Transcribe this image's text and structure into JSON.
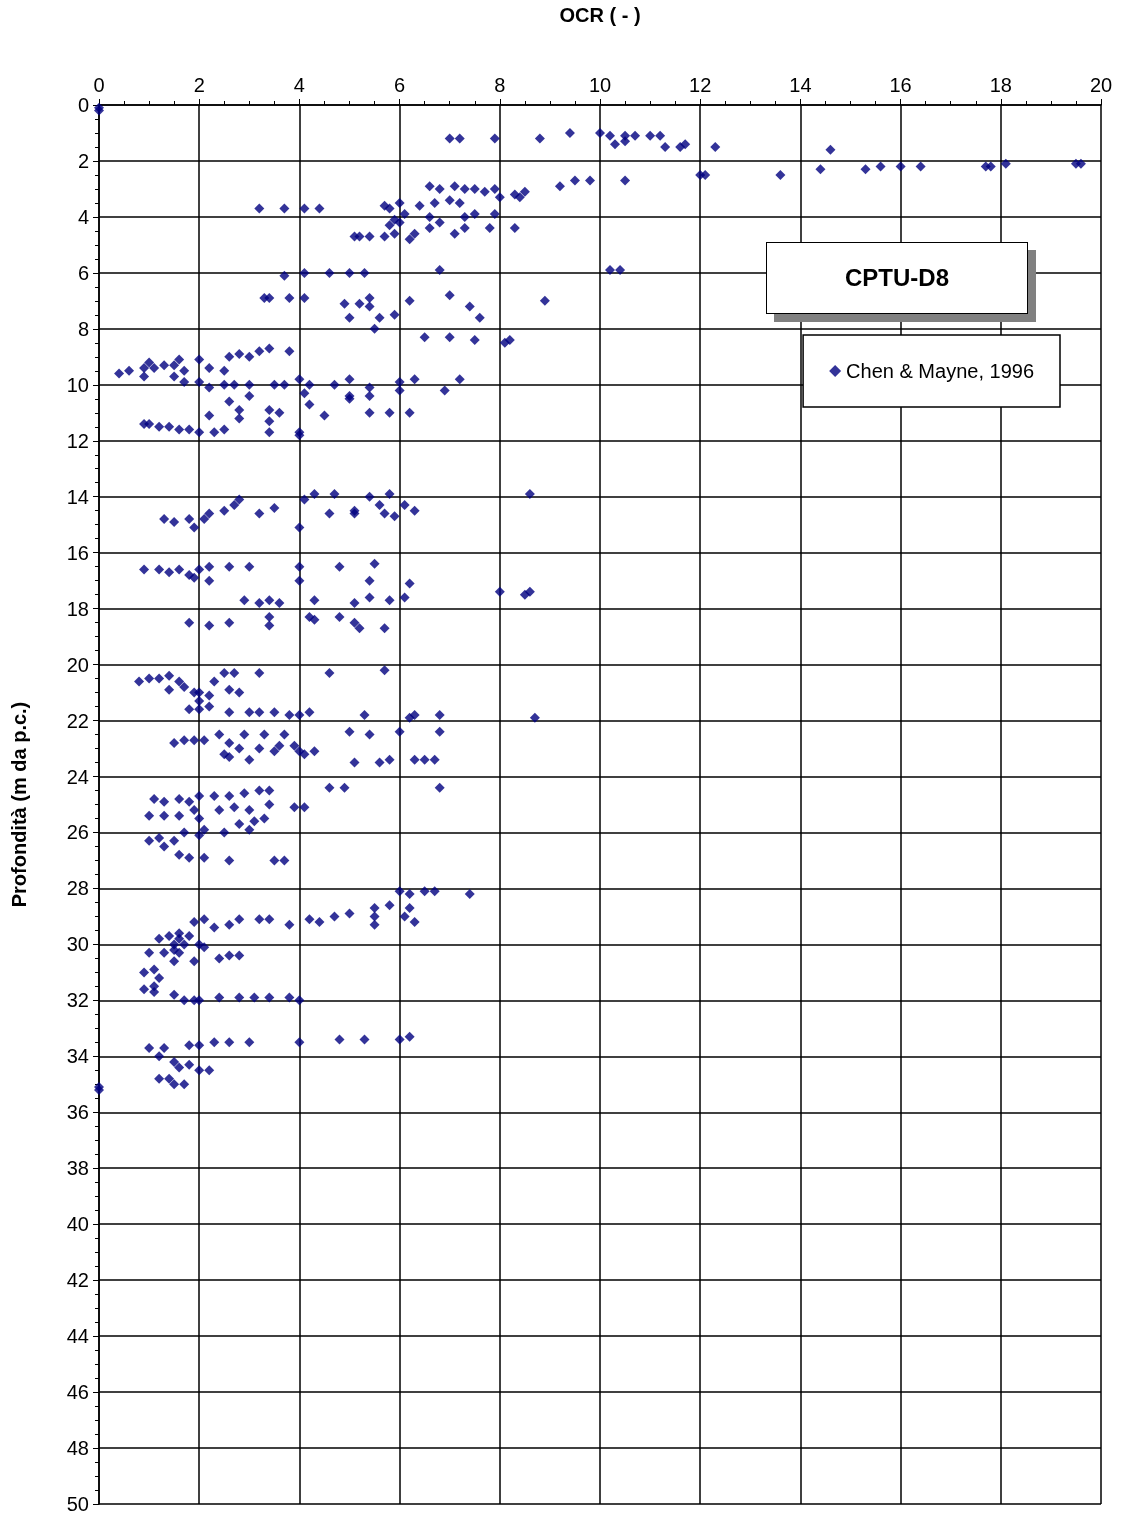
{
  "chart_data": {
    "type": "scatter",
    "xlabel": "OCR ( - )",
    "ylabel": "Profondità (m da p.c.)",
    "annotations": [
      "CPTU-D8"
    ],
    "xlim": [
      0,
      20
    ],
    "xticks": [
      0,
      2,
      4,
      6,
      8,
      10,
      12,
      14,
      16,
      18,
      20
    ],
    "ylim": [
      50,
      0
    ],
    "yticks": [
      0,
      2,
      4,
      6,
      8,
      10,
      12,
      14,
      16,
      18,
      20,
      22,
      24,
      26,
      28,
      30,
      32,
      34,
      36,
      38,
      40,
      42,
      44,
      46,
      48,
      50
    ],
    "grid": true,
    "legend": "top right",
    "marker": "diamond",
    "series": [
      {
        "name": "Chen & Mayne, 1996",
        "color": "#000080",
        "x": [
          0,
          0,
          7,
          7.2,
          7.9,
          8.8,
          9.4,
          10,
          10.2,
          10.3,
          10.5,
          10.7,
          10.5,
          11,
          11.2,
          11.3,
          11.6,
          11.7,
          12.3,
          14.6,
          9.2,
          9.5,
          9.8,
          10.5,
          12,
          12.1,
          13.6,
          14.4,
          15.3,
          15.6,
          16,
          16.4,
          17.7,
          17.8,
          18.1,
          19.5,
          19.6,
          6.6,
          6.8,
          7.1,
          7.3,
          7.5,
          7.7,
          7.9,
          8.3,
          8.5,
          8.4,
          8.0,
          7.2,
          7.0,
          6.7,
          6.4,
          5.7,
          5.8,
          6.0,
          3.2,
          3.7,
          4.1,
          4.4,
          6.1,
          5.9,
          6.0,
          5.8,
          6.6,
          6.8,
          6.6,
          6.3,
          7.3,
          7.5,
          7.9,
          8.3,
          7.8,
          7.3,
          7.1,
          6.2,
          5.1,
          5.2,
          5.4,
          5.7,
          5.9,
          3.7,
          4.1,
          4.6,
          5.0,
          5.3,
          6.8,
          10.2,
          10.4,
          3.3,
          3.4,
          3.8,
          4.1,
          4.9,
          5.4,
          5.4,
          5.2,
          6.2,
          7.0,
          7.4,
          7.6,
          5.6,
          5.9,
          5.0,
          5.5,
          8.9,
          6.5,
          7.0,
          7.5,
          8.1,
          8.2,
          0.4,
          0.6,
          0.9,
          1.0,
          1.1,
          1.3,
          1.5,
          1.6,
          1.7,
          2.0,
          2.2,
          2.6,
          2.8,
          3.0,
          3.2,
          3.4,
          3.8,
          2.0,
          1.5,
          0.9,
          1.7,
          2.5,
          2.2,
          2.5,
          2.7,
          3.0,
          3.5,
          3.7,
          4.0,
          4.2,
          4.1,
          4.7,
          5.0,
          5.4,
          6.0,
          6.3,
          7.2,
          3.0,
          2.6,
          2.8,
          3.4,
          3.6,
          4.2,
          4.5,
          5.0,
          5.4,
          6.0,
          6.9,
          5.8,
          6.2,
          5.4,
          5.0,
          3.4,
          2.5,
          4.0,
          2.8,
          2.2,
          0.9,
          1.0,
          1.2,
          1.4,
          1.6,
          1.8,
          2.0,
          2.3,
          3.4,
          4.0,
          1.3,
          1.5,
          1.8,
          1.9,
          2.1,
          2.2,
          2.5,
          2.7,
          2.8,
          3.2,
          3.5,
          4.1,
          4.3,
          4.6,
          4.7,
          5.1,
          5.1,
          5.4,
          5.8,
          5.6,
          5.7,
          5.9,
          6.1,
          6.3,
          4.0,
          8.6,
          0.9,
          1.2,
          1.4,
          1.6,
          1.8,
          1.9,
          2.0,
          2.2,
          2.2,
          2.6,
          3.0,
          4.0,
          4.0,
          4.8,
          5.4,
          5.5,
          6.2,
          2.9,
          3.2,
          3.4,
          3.6,
          4.3,
          5.1,
          5.4,
          5.8,
          6.1,
          8.0,
          8.5,
          8.6,
          1.8,
          2.2,
          2.6,
          3.4,
          3.4,
          4.2,
          4.3,
          4.8,
          5.1,
          5.2,
          5.7,
          0.8,
          1.0,
          1.2,
          1.4,
          1.6,
          1.4,
          1.7,
          1.9,
          2.0,
          2.2,
          2.3,
          2.5,
          2.7,
          3.2,
          4.6,
          5.7,
          2.6,
          2.8,
          2.0,
          1.8,
          2.2,
          2.6,
          3.0,
          3.2,
          3.5,
          3.8,
          4.0,
          4.2,
          5.3,
          6.2,
          6.3,
          6.8,
          8.7,
          2.0,
          1.5,
          1.7,
          1.9,
          2.1,
          2.5,
          2.8,
          2.9,
          3.2,
          3.3,
          3.6,
          3.7,
          3.9,
          4.0,
          4.1,
          5.0,
          5.1,
          5.4,
          5.6,
          5.8,
          6.0,
          6.3,
          6.5,
          6.7,
          6.8,
          4.3,
          2.4,
          2.6,
          3.0,
          3.5,
          4.6,
          4.9,
          6.8,
          2.6,
          2.0,
          2.3,
          2.6,
          2.9,
          3.2,
          3.4,
          1.1,
          1.3,
          1.6,
          1.8,
          1.0,
          1.3,
          1.6,
          2.0,
          2.4,
          2.7,
          3.0,
          3.4,
          1.9,
          3.9,
          4.1,
          2.8,
          3.1,
          3.3,
          3.0,
          2.5,
          2.1,
          2.0,
          1.7,
          1.5,
          1.0,
          1.2,
          1.3,
          1.6,
          1.8,
          2.1,
          2.6,
          3.5,
          3.7,
          6.0,
          6.2,
          6.5,
          6.7,
          7.4,
          5.5,
          5.8,
          6.2,
          5.5,
          5.0,
          4.7,
          4.4,
          4.2,
          5.5,
          6.1,
          6.3,
          3.2,
          3.4,
          3.8,
          2.1,
          2.6,
          2.8,
          2.3,
          1.9,
          1.6,
          1.2,
          1.4,
          1.6,
          1.8,
          1.5,
          1.5,
          1.7,
          2.0,
          2.1,
          1.0,
          1.3,
          1.6,
          2.4,
          2.6,
          2.8,
          1.5,
          1.9,
          0.9,
          1.1,
          1.2,
          1.1,
          0.9,
          1.1,
          1.5,
          1.7,
          1.9,
          2.0,
          2.4,
          2.8,
          3.1,
          3.4,
          3.8,
          4.0,
          2.3,
          2.6,
          3.0,
          4.0,
          4.8,
          5.3,
          6.0,
          6.2,
          1.0,
          1.3,
          1.8,
          2.0,
          1.2,
          1.5,
          1.6,
          1.8,
          2.0,
          2.2,
          1.2,
          1.4,
          1.5,
          1.7,
          0,
          0
        ],
        "values": [
          0.1,
          0.2,
          1.2,
          1.2,
          1.2,
          1.2,
          1.0,
          1.0,
          1.1,
          1.4,
          1.1,
          1.1,
          1.3,
          1.1,
          1.1,
          1.5,
          1.5,
          1.4,
          1.5,
          1.6,
          2.9,
          2.7,
          2.7,
          2.7,
          2.5,
          2.5,
          2.5,
          2.3,
          2.3,
          2.2,
          2.2,
          2.2,
          2.2,
          2.2,
          2.1,
          2.1,
          2.1,
          2.9,
          3.0,
          2.9,
          3.0,
          3.0,
          3.1,
          3.0,
          3.2,
          3.1,
          3.3,
          3.3,
          3.5,
          3.4,
          3.5,
          3.6,
          3.6,
          3.7,
          3.5,
          3.7,
          3.7,
          3.7,
          3.7,
          3.9,
          4.1,
          4.2,
          4.3,
          4.0,
          4.2,
          4.4,
          4.6,
          4.0,
          3.9,
          3.9,
          4.4,
          4.4,
          4.4,
          4.6,
          4.8,
          4.7,
          4.7,
          4.7,
          4.7,
          4.6,
          6.1,
          6.0,
          6.0,
          6.0,
          6.0,
          5.9,
          5.9,
          5.9,
          6.9,
          6.9,
          6.9,
          6.9,
          7.1,
          6.9,
          7.2,
          7.1,
          7.0,
          6.8,
          7.2,
          7.6,
          7.6,
          7.5,
          7.6,
          8.0,
          7.0,
          8.3,
          8.3,
          8.4,
          8.5,
          8.4,
          9.6,
          9.5,
          9.4,
          9.2,
          9.4,
          9.3,
          9.3,
          9.1,
          9.5,
          9.1,
          9.4,
          9.0,
          8.9,
          9.0,
          8.8,
          8.7,
          8.8,
          9.9,
          9.7,
          9.7,
          9.9,
          9.5,
          10.1,
          10.0,
          10.0,
          10.0,
          10.0,
          10.0,
          9.8,
          10.0,
          10.3,
          10.0,
          9.8,
          10.1,
          9.9,
          9.8,
          9.8,
          10.4,
          10.6,
          10.9,
          10.9,
          11.0,
          10.7,
          11.1,
          10.4,
          10.4,
          10.2,
          10.2,
          11.0,
          11.0,
          11.0,
          10.5,
          11.3,
          11.6,
          11.7,
          11.2,
          11.1,
          11.4,
          11.4,
          11.5,
          11.5,
          11.6,
          11.6,
          11.7,
          11.7,
          11.7,
          11.8,
          14.8,
          14.9,
          14.8,
          15.1,
          14.8,
          14.6,
          14.5,
          14.3,
          14.1,
          14.6,
          14.4,
          14.1,
          13.9,
          14.6,
          13.9,
          14.6,
          14.5,
          14.0,
          13.9,
          14.3,
          14.6,
          14.7,
          14.3,
          14.5,
          15.1,
          13.9,
          16.6,
          16.6,
          16.7,
          16.6,
          16.8,
          16.9,
          16.6,
          16.5,
          17.0,
          16.5,
          16.5,
          16.5,
          17.0,
          16.5,
          17.0,
          16.4,
          17.1,
          17.7,
          17.8,
          17.7,
          17.8,
          17.7,
          17.8,
          17.6,
          17.7,
          17.6,
          17.4,
          17.5,
          17.4,
          18.5,
          18.6,
          18.5,
          18.3,
          18.6,
          18.3,
          18.4,
          18.3,
          18.5,
          18.7,
          18.7,
          20.6,
          20.5,
          20.5,
          20.4,
          20.6,
          20.9,
          20.8,
          21.0,
          21.3,
          21.1,
          20.6,
          20.3,
          20.3,
          20.3,
          20.3,
          20.2,
          20.9,
          21.0,
          21.6,
          21.6,
          21.5,
          21.7,
          21.7,
          21.7,
          21.7,
          21.8,
          21.8,
          21.7,
          21.8,
          21.9,
          21.8,
          21.8,
          21.9,
          21.0,
          22.8,
          22.7,
          22.7,
          22.7,
          23.2,
          23.0,
          22.5,
          23.0,
          22.5,
          22.9,
          22.5,
          22.9,
          23.1,
          23.2,
          22.4,
          23.5,
          22.5,
          23.5,
          23.4,
          22.4,
          23.4,
          23.4,
          23.4,
          22.4,
          23.1,
          22.5,
          23.3,
          23.4,
          23.1,
          24.4,
          24.4,
          24.4,
          22.8,
          24.7,
          24.7,
          24.7,
          24.6,
          24.5,
          24.5,
          24.8,
          24.9,
          24.8,
          24.9,
          25.4,
          25.4,
          25.4,
          25.5,
          25.2,
          25.1,
          25.2,
          25.0,
          25.2,
          25.1,
          25.1,
          25.7,
          25.6,
          25.5,
          25.9,
          26.0,
          25.9,
          26.1,
          26.0,
          26.3,
          26.3,
          26.2,
          26.5,
          26.8,
          26.9,
          26.9,
          27.0,
          27.0,
          27.0,
          28.1,
          28.2,
          28.1,
          28.1,
          28.2,
          28.7,
          28.6,
          28.7,
          29.0,
          28.9,
          29.0,
          29.2,
          29.1,
          29.3,
          29.0,
          29.2,
          29.1,
          29.1,
          29.3,
          29.1,
          29.3,
          29.1,
          29.4,
          29.2,
          29.6,
          29.8,
          29.7,
          29.8,
          29.7,
          30.0,
          30.2,
          30.0,
          30.0,
          30.1,
          30.3,
          30.3,
          30.3,
          30.5,
          30.4,
          30.4,
          30.6,
          30.6,
          31.0,
          30.9,
          31.2,
          31.5,
          31.6,
          31.7,
          31.8,
          32.0,
          32.0,
          32.0,
          31.9,
          31.9,
          31.9,
          31.9,
          31.9,
          32.0,
          33.5,
          33.5,
          33.5,
          33.5,
          33.4,
          33.4,
          33.4,
          33.3,
          33.7,
          33.7,
          33.6,
          33.6,
          34.0,
          34.2,
          34.4,
          34.3,
          34.5,
          34.5,
          34.8,
          34.8,
          35.0,
          35.0,
          35.1,
          35.2
        ]
      }
    ]
  }
}
